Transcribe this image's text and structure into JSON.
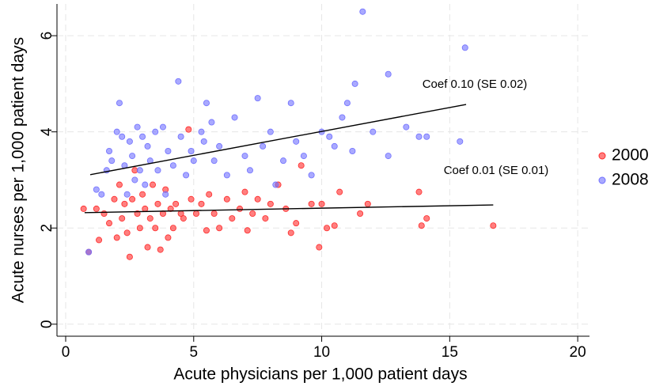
{
  "chart_data": {
    "type": "scatter",
    "xlabel": "Acute physicians per 1,000 patient days",
    "ylabel": "Acute nurses per 1,000 patient days",
    "xlim": [
      -0.34,
      20.46
    ],
    "ylim": [
      -0.25,
      6.66
    ],
    "xticks": [
      0,
      5,
      10,
      15,
      20
    ],
    "yticks": [
      0,
      2,
      4,
      6
    ],
    "grid": true,
    "legend": "right",
    "annotations": [
      "Coef 0.10 (SE 0.02)",
      "Coef 0.01 (SE 0.01)"
    ],
    "series": [
      {
        "name": "2000",
        "color": "#ff2a2a",
        "x": [
          0.7,
          0.9,
          1.2,
          1.3,
          1.5,
          1.7,
          1.9,
          2.0,
          2.1,
          2.2,
          2.3,
          2.4,
          2.5,
          2.6,
          2.7,
          2.8,
          2.9,
          3.0,
          3.1,
          3.2,
          3.3,
          3.4,
          3.5,
          3.6,
          3.7,
          3.8,
          3.9,
          4.0,
          4.1,
          4.2,
          4.3,
          4.5,
          4.6,
          4.8,
          4.9,
          5.1,
          5.3,
          5.5,
          5.6,
          5.8,
          6.0,
          6.3,
          6.5,
          6.8,
          7.0,
          7.1,
          7.3,
          7.5,
          7.8,
          8.0,
          8.3,
          8.6,
          8.8,
          9.0,
          9.2,
          9.6,
          9.9,
          10.0,
          10.2,
          10.5,
          10.7,
          11.5,
          11.8,
          13.8,
          13.9,
          14.1,
          16.7
        ],
        "values": [
          2.4,
          1.5,
          2.4,
          1.75,
          2.3,
          2.1,
          2.6,
          1.8,
          2.9,
          2.2,
          2.5,
          1.9,
          1.4,
          2.6,
          3.2,
          2.3,
          2.0,
          2.7,
          2.4,
          1.6,
          2.2,
          2.9,
          2.0,
          2.5,
          1.55,
          2.3,
          2.8,
          1.8,
          2.4,
          2.0,
          2.5,
          2.3,
          2.2,
          4.05,
          2.6,
          2.3,
          2.5,
          1.95,
          2.7,
          2.3,
          2.0,
          2.6,
          2.2,
          2.4,
          2.75,
          1.95,
          2.3,
          2.6,
          2.2,
          2.5,
          2.9,
          2.4,
          1.9,
          2.1,
          3.3,
          2.5,
          1.6,
          2.5,
          2.0,
          2.05,
          2.75,
          2.3,
          2.5,
          2.75,
          2.05,
          2.2,
          2.05
        ],
        "fit": {
          "x": [
            0.74,
            16.7
          ],
          "y": [
            2.32,
            2.48
          ]
        }
      },
      {
        "name": "2008",
        "color": "#7070ff",
        "x": [
          0.9,
          1.2,
          1.4,
          1.6,
          1.7,
          1.8,
          2.0,
          2.1,
          2.2,
          2.3,
          2.4,
          2.5,
          2.6,
          2.7,
          2.8,
          2.9,
          3.0,
          3.1,
          3.2,
          3.3,
          3.5,
          3.6,
          3.8,
          3.9,
          4.0,
          4.2,
          4.4,
          4.5,
          4.7,
          4.9,
          5.0,
          5.3,
          5.4,
          5.5,
          5.7,
          5.8,
          6.0,
          6.3,
          6.6,
          7.0,
          7.2,
          7.5,
          7.7,
          8.0,
          8.2,
          8.5,
          8.8,
          9.0,
          9.3,
          9.6,
          10.0,
          10.3,
          10.5,
          10.8,
          11.0,
          11.2,
          11.3,
          11.6,
          12.0,
          12.6,
          12.6,
          13.3,
          13.8,
          14.1,
          15.4,
          15.6
        ],
        "values": [
          1.5,
          2.8,
          2.7,
          3.2,
          3.6,
          3.4,
          4.0,
          4.6,
          3.9,
          3.3,
          2.7,
          3.8,
          3.5,
          3.0,
          4.1,
          3.2,
          3.9,
          2.9,
          3.7,
          3.4,
          4.0,
          3.2,
          4.1,
          2.7,
          3.6,
          3.3,
          5.05,
          3.9,
          3.1,
          3.6,
          3.4,
          4.0,
          3.8,
          4.6,
          4.2,
          3.4,
          3.7,
          3.1,
          4.3,
          3.5,
          3.2,
          4.7,
          3.7,
          4.0,
          2.9,
          3.4,
          4.6,
          3.8,
          3.5,
          3.1,
          4.0,
          3.9,
          3.7,
          4.3,
          4.6,
          3.6,
          5.0,
          6.5,
          4.0,
          5.2,
          3.5,
          4.1,
          3.9,
          3.9,
          3.8,
          5.75
        ],
        "fit": {
          "x": [
            0.96,
            15.64
          ],
          "y": [
            3.11,
            4.57
          ]
        }
      }
    ]
  }
}
